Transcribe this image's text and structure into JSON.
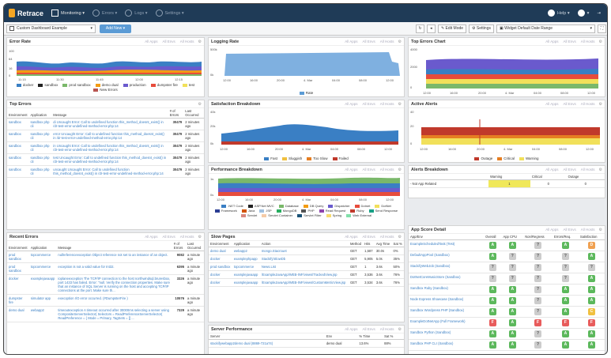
{
  "app": {
    "brand": "Retrace",
    "nav": [
      "Monitoring",
      "Errors",
      "Logs",
      "Settings"
    ],
    "help": "Help",
    "user": ""
  },
  "toolbar": {
    "dashboard": "Custom Dashboard Example",
    "add_new": "Add New",
    "edit_mode": "Edit Mode",
    "settings": "Settings",
    "date_range": "Widget Default Date Range"
  },
  "colors": {
    "accent": "#5b9bd5",
    "nav": "#1f3b57"
  },
  "filters": [
    "All Apps",
    "All Envs",
    "All Hosts"
  ],
  "error_rate": {
    "title": "Error Rate",
    "ylabels": [
      "100",
      "64",
      "16",
      "0"
    ],
    "xlabels": [
      "11:15",
      "11:30",
      "11:45",
      "12:00",
      "12:15"
    ],
    "legend": [
      {
        "name": "docker",
        "color": "#3a7fc4"
      },
      {
        "name": "sandbox",
        "color": "#222"
      },
      {
        "name": "prod sandbox",
        "color": "#7ab86a"
      },
      {
        "name": "demo dual",
        "color": "#f39c12"
      },
      {
        "name": "production",
        "color": "#6a5acd"
      },
      {
        "name": "dumpster fire",
        "color": "#e74c3c"
      },
      {
        "name": "test",
        "color": "#f1e05a"
      },
      {
        "name": "New Errors",
        "color": "#b85450"
      }
    ]
  },
  "logging_rate": {
    "title": "Logging Rate",
    "ylabels": [
      "500k",
      "0k"
    ],
    "xlabels": [
      "12:00",
      "16:00",
      "20:00",
      "4. Mar",
      "04:00",
      "08:00",
      "12:00"
    ],
    "legend": [
      {
        "name": "Rate",
        "color": "#5b9bd5"
      }
    ]
  },
  "top_errors_chart": {
    "title": "Top Errors Chart",
    "ylabels": [
      "4000",
      "2000",
      "0"
    ],
    "xlabels": [
      "12:00",
      "16:00",
      "20:00",
      "4. Mar",
      "04:00",
      "08:00",
      "12:00"
    ]
  },
  "top_errors": {
    "title": "Top Errors",
    "headers": [
      "Environment",
      "Application",
      "Message",
      "# of Errors",
      "Last Occurred"
    ],
    "rows": [
      [
        "sandbox",
        "sandbox php cli",
        "di Uncaught Error: Call to undefined function this_method_doesnt_exist() in /dr-test-error-undefined-method-error.php:14",
        "30479",
        "2 minutes ago"
      ],
      [
        "sandbox",
        "sandbox php cli",
        "error Uncaught Error: Call to undefined function this_method_doesnt_exist() in /dr-test-error-undefined-method-error.php:14",
        "30479",
        "2 minutes ago"
      ],
      [
        "sandbox",
        "sandbox php cli",
        "in Uncaught Error: Call to undefined function this_method_doesnt_exist() in /dr-test-error-undefined-method-error.php:14",
        "30479",
        "2 minutes ago"
      ],
      [
        "sandbox",
        "sandbox php cli",
        "test Uncaught Error: Call to undefined function this_method_doesnt_exist() in /dr-test-error-undefined-method-error.php:14",
        "30479",
        "2 minutes ago"
      ],
      [
        "sandbox",
        "sandbox php cli",
        "uncaught Uncaught Error: Call to undefined function this_method_doesnt_exist() in /dr-test-error-undefined-method-error.php:14",
        "30479",
        "2 minutes ago"
      ]
    ]
  },
  "recent_errors": {
    "title": "Recent Errors",
    "headers": [
      "Environment",
      "Application",
      "Message",
      "# of Errors",
      "Last Occurred"
    ],
    "rows": [
      [
        "prod sandbox",
        "topcommerce",
        "nullreferenceexception Object reference not set to an instance of an object.",
        "9082",
        "a minute ago"
      ],
      [
        "prod sandbox",
        "topcommerce",
        "exception is not a valid value for Int32.",
        "6395",
        "a minute ago"
      ],
      [
        "docker",
        "examplejavaapp",
        "ioplaneexception The TCP/IP connection to the host northwindsql.bruresbox, port 1433 has failed. Error: \"null. Verify the connection properties. Make sure that an instance of SQL Server is running on the host and accepting TCP/IP connections at the port. Make sure th...",
        "3326",
        "a minute ago"
      ],
      [
        "dumpster fire",
        "simulator app",
        "execoption I/O error occurred. (#DumpsterFire )",
        "10576",
        "a minute ago"
      ],
      [
        "demo dual",
        "webapp2",
        "timeoutexception A timeout occurred after 30000ms selecting a server using CompositeServerSelector{ Selectors = ReadPreferenceServerSelector{ ReadPreference = { Mode = Primary, TagSets = [] ...",
        "7329",
        "a minute ago"
      ]
    ]
  },
  "satisfaction": {
    "title": "Satisfaction Breakdown",
    "ylabels": [
      "40k",
      "20k",
      "0k"
    ],
    "xlabels": [
      "12:00",
      "16:00",
      "20:00",
      "4. Mar",
      "04:00",
      "08:00",
      "12:00"
    ],
    "legend": [
      {
        "name": "Fast",
        "color": "#3a7fc4"
      },
      {
        "name": "Sluggish",
        "color": "#f0c040"
      },
      {
        "name": "Too Slow",
        "color": "#e67e22"
      },
      {
        "name": "Failed",
        "color": "#c0392b"
      }
    ]
  },
  "performance": {
    "title": "Performance Breakdown",
    "ylabels": [
      "1s",
      "0s"
    ],
    "xlabels": [
      "12:00",
      "16:00",
      "20:00",
      "4. Mar",
      "04:00",
      "08:00",
      "12:00"
    ],
    "legend": [
      {
        "name": ".NET Code",
        "color": "#3a7fc4"
      },
      {
        "name": "ASP.Net MVC",
        "color": "#222"
      },
      {
        "name": "Database",
        "color": "#7ab86a"
      },
      {
        "name": "DB Query",
        "color": "#f39c12"
      },
      {
        "name": "Dispatcher",
        "color": "#6a5acd"
      },
      {
        "name": "Dotnet",
        "color": "#e74c3c"
      },
      {
        "name": "DotNet",
        "color": "#f1e05a"
      },
      {
        "name": "Framework",
        "color": "#2c3e94"
      },
      {
        "name": "Java",
        "color": "#d35400"
      },
      {
        "name": "JSP",
        "color": "#a0c0e0"
      },
      {
        "name": "MongoDB",
        "color": "#27ae60"
      },
      {
        "name": "PHP",
        "color": "#555"
      },
      {
        "name": "Read Request",
        "color": "#8e44ad"
      },
      {
        "name": "Ruby",
        "color": "#c0392b"
      },
      {
        "name": "Send Response",
        "color": "#16a085"
      },
      {
        "name": "Servlet",
        "color": "#d98880"
      },
      {
        "name": "Servlet Container",
        "color": "#f5cba7"
      },
      {
        "name": "Servlet Filter",
        "color": "#1a5276"
      },
      {
        "name": "Spring",
        "color": "#f7dc6f"
      },
      {
        "name": "Web External",
        "color": "#82e0aa"
      }
    ]
  },
  "active_alerts": {
    "title": "Active Alerts",
    "ylabels": [
      "40",
      "20",
      "0"
    ],
    "xlabels": [
      "12:00",
      "16:00",
      "20:00",
      "4. Mar",
      "04:00",
      "08:00",
      "12:00"
    ],
    "legend": [
      {
        "name": "Outage",
        "color": "#c0392b"
      },
      {
        "name": "Critical",
        "color": "#e67e22"
      },
      {
        "name": "Warning",
        "color": "#f1e05a"
      }
    ]
  },
  "alerts_breakdown": {
    "title": "Alerts Breakdown",
    "headers": [
      "",
      "Warning",
      "Critical",
      "Outage"
    ],
    "rows": [
      [
        "- Not App Related",
        "1",
        "0",
        "0"
      ]
    ]
  },
  "slow_pages": {
    "title": "Slow Pages",
    "headers": [
      "Environment",
      "Application",
      "Action",
      "Method",
      "Hits",
      "Avg Time",
      "Sat %"
    ],
    "rows": [
      [
        "demo dual",
        "webapp2",
        "mongo.Stacrouet",
        "GET",
        "1,587",
        "30.0s",
        "0%"
      ],
      [
        "docker",
        "examplephpapp",
        "Stackify\\SlowDb",
        "GET",
        "5,905",
        "5.0s",
        "35%"
      ],
      [
        "prod sandbox",
        "topcommerce",
        "News.List",
        "GET",
        "1",
        "3.6s",
        "50%"
      ],
      [
        "docker",
        "examplejavaapp",
        "/ExampleJavaApp/WEB-INF/views/TrackedView.jsp",
        "GET",
        "3,536",
        "3.6s",
        "76%"
      ],
      [
        "docker",
        "examplejavaapp",
        "/ExampleJavaApp/WEB-INF/views/CustomMetricView.jsp",
        "GET",
        "3,534",
        "3.6s",
        "76%"
      ]
    ]
  },
  "server_perf": {
    "title": "Server Performance",
    "headers": [
      "Server",
      "Env",
      "% Time",
      "Sat %"
    ],
    "rows": [
      [
        "stackifywebapp2demo dual (8869-721a74)",
        "demo dual",
        "13.6%",
        "88%"
      ]
    ]
  },
  "score": {
    "title": "App Score Detail",
    "headers": [
      "App/Env",
      "Overall",
      "App CPU",
      "Non/Regress",
      "Errors/Req.",
      "Satisfaction"
    ],
    "rows": [
      [
        "ExampleScheduledTask (Test)",
        "A",
        "A",
        "?",
        "A",
        "D"
      ],
      [
        "DefaultAppPool (Sandbox)",
        "A",
        "?",
        "?",
        "?",
        "A"
      ],
      [
        "StackifyWebJob (Sandbox)",
        "?",
        "?",
        "?",
        "?",
        "?"
      ],
      [
        "DotNetCoreMusicStore (Sandbox)",
        "?",
        "?",
        "?",
        "?",
        "A"
      ],
      [
        "Sandbox Ruby (Sandbox)",
        "A",
        "A",
        "?",
        "A",
        "A"
      ],
      [
        "Node Express Showcase (Sandbox)",
        "A",
        "A",
        "?",
        "A",
        "A"
      ],
      [
        "Sandbox Wordpress PHP (Sandbox)",
        "A",
        "A",
        "?",
        "A",
        "C"
      ],
      [
        "ExampleDotNetApp (Full Framework)",
        "F",
        "A",
        "F",
        "F",
        "F"
      ],
      [
        "Sandbox Python (Sandbox)",
        "A",
        "A",
        "?",
        "A",
        "A"
      ],
      [
        "Sandbox PHP CLI (Sandbox)",
        "A",
        "A",
        "?",
        "A",
        "A"
      ]
    ]
  }
}
